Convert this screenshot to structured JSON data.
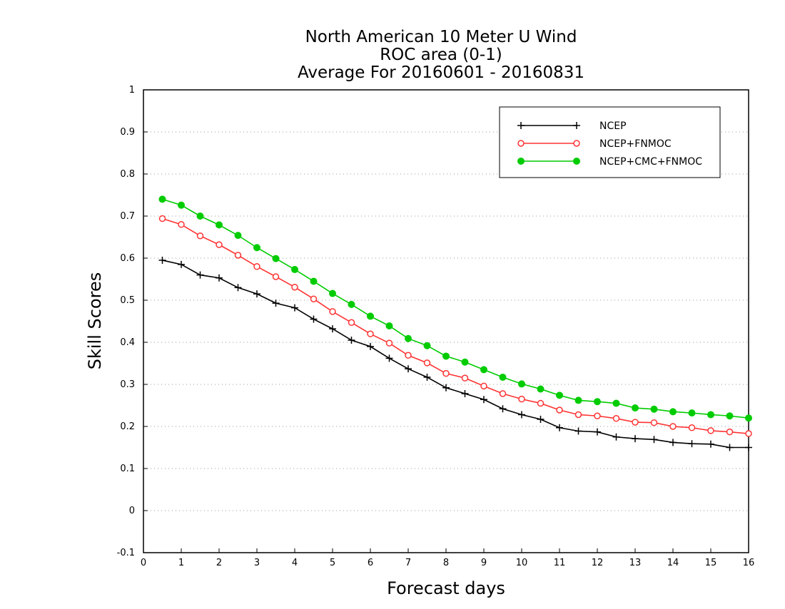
{
  "chart_data": {
    "type": "line",
    "title_lines": [
      "North American 10 Meter U Wind",
      "ROC area (0-1)",
      "Average For 20160601 - 20160831"
    ],
    "xlabel": "Forecast days",
    "ylabel": "Skill Scores",
    "xlim": [
      0,
      16
    ],
    "ylim": [
      -0.1,
      1
    ],
    "xticks": [
      "0",
      "1",
      "2",
      "3",
      "4",
      "5",
      "6",
      "7",
      "8",
      "9",
      "10",
      "11",
      "12",
      "13",
      "14",
      "15",
      "16"
    ],
    "yticks": [
      "-0.1",
      "0",
      "0.1",
      "0.2",
      "0.3",
      "0.4",
      "0.5",
      "0.6",
      "0.7",
      "0.8",
      "0.9",
      "1"
    ],
    "grid": "horizontal dotted",
    "legend_position": "top-right",
    "x": [
      0.5,
      1,
      1.5,
      2,
      2.5,
      3,
      3.5,
      4,
      4.5,
      5,
      5.5,
      6,
      6.5,
      7,
      7.5,
      8,
      8.5,
      9,
      9.5,
      10,
      10.5,
      11,
      11.5,
      12,
      12.5,
      13,
      13.5,
      14,
      14.5,
      15,
      15.5,
      16
    ],
    "series": [
      {
        "name": "NCEP",
        "color": "#000000",
        "marker": "plus",
        "values": [
          0.595,
          0.585,
          0.56,
          0.553,
          0.53,
          0.515,
          0.493,
          0.482,
          0.455,
          0.432,
          0.405,
          0.39,
          0.362,
          0.337,
          0.317,
          0.292,
          0.278,
          0.264,
          0.242,
          0.228,
          0.217,
          0.197,
          0.189,
          0.187,
          0.175,
          0.171,
          0.169,
          0.162,
          0.159,
          0.158,
          0.15,
          0.15
        ]
      },
      {
        "name": "NCEP+FNMOC",
        "color": "#ff3333",
        "marker": "open-circle",
        "values": [
          0.694,
          0.68,
          0.653,
          0.632,
          0.607,
          0.58,
          0.556,
          0.531,
          0.503,
          0.473,
          0.447,
          0.42,
          0.398,
          0.369,
          0.351,
          0.326,
          0.315,
          0.296,
          0.278,
          0.265,
          0.255,
          0.239,
          0.228,
          0.225,
          0.219,
          0.21,
          0.209,
          0.2,
          0.197,
          0.19,
          0.187,
          0.183
        ]
      },
      {
        "name": "NCEP+CMC+FNMOC",
        "color": "#00cc00",
        "marker": "filled-circle",
        "values": [
          0.74,
          0.726,
          0.7,
          0.679,
          0.654,
          0.625,
          0.599,
          0.573,
          0.545,
          0.516,
          0.49,
          0.462,
          0.439,
          0.409,
          0.392,
          0.367,
          0.353,
          0.335,
          0.317,
          0.301,
          0.289,
          0.274,
          0.262,
          0.259,
          0.255,
          0.244,
          0.241,
          0.235,
          0.232,
          0.228,
          0.225,
          0.22
        ]
      }
    ]
  }
}
